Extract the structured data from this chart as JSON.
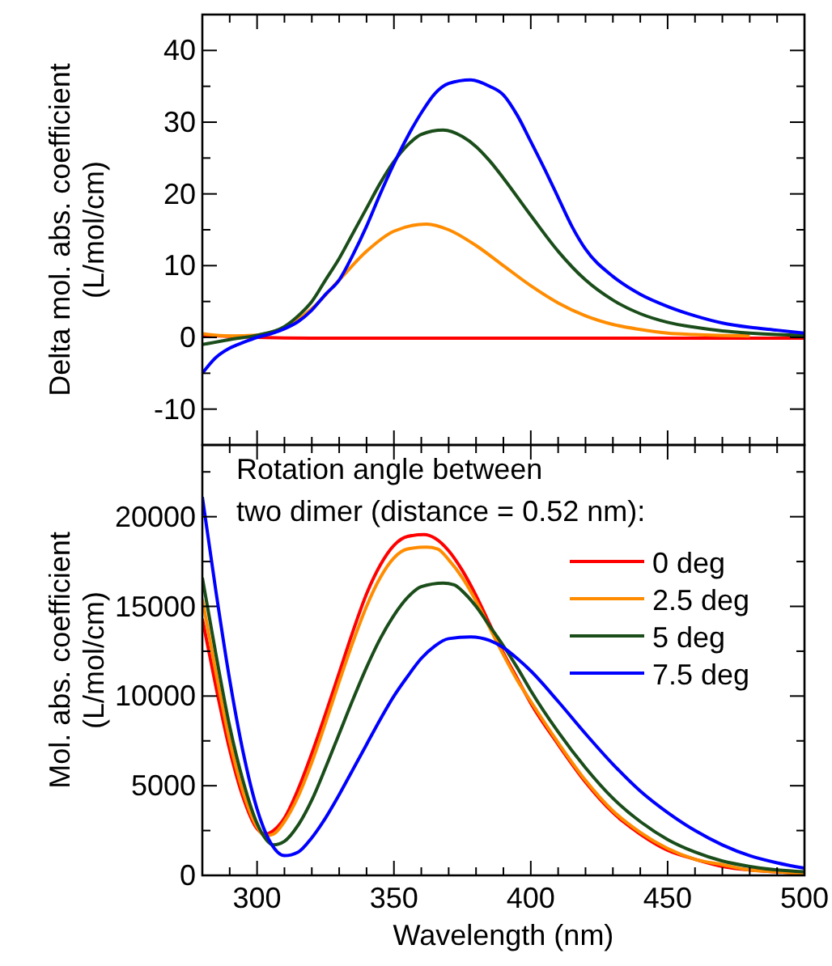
{
  "chart_data": [
    {
      "type": "line",
      "ylabel": "Delta mol. abs. coefficient\n(L/mol/cm)",
      "xlim": [
        280,
        500
      ],
      "ylim": [
        -15,
        45
      ],
      "tick_labels": "y",
      "xticks": [
        {
          "value": 290,
          "label": null
        },
        300,
        {
          "value": 310,
          "label": null
        },
        {
          "value": 320,
          "label": null
        },
        {
          "value": 330,
          "label": null
        },
        {
          "value": 340,
          "label": null
        },
        350,
        {
          "value": 360,
          "label": null
        },
        {
          "value": 370,
          "label": null
        },
        {
          "value": 380,
          "label": null
        },
        {
          "value": 390,
          "label": null
        },
        400,
        {
          "value": 410,
          "label": null
        },
        {
          "value": 420,
          "label": null
        },
        {
          "value": 430,
          "label": null
        },
        {
          "value": 440,
          "label": null
        },
        450,
        {
          "value": 460,
          "label": null
        },
        {
          "value": 470,
          "label": null
        },
        {
          "value": 480,
          "label": null
        },
        {
          "value": 490,
          "label": null
        },
        500
      ],
      "yticks": [
        -10,
        {
          "value": -5,
          "label": null
        },
        0,
        {
          "value": 5,
          "label": null
        },
        10,
        {
          "value": 15,
          "label": null
        },
        20,
        {
          "value": 25,
          "label": null
        },
        30,
        {
          "value": 35,
          "label": null
        },
        40
      ],
      "grid": false,
      "legend": false,
      "line_style": "solid",
      "marker": "none",
      "series": [
        {
          "color": "#ff0000",
          "x": [
            280,
            300,
            320,
            400,
            500
          ],
          "values": [
            0.3,
            0,
            -0.1,
            -0.1,
            -0.1
          ]
        },
        {
          "color": "#ff8c00",
          "x": [
            280,
            290,
            300,
            310,
            320,
            330,
            340,
            350,
            362,
            370,
            380,
            390,
            400,
            410,
            420,
            430,
            440,
            450,
            460,
            480
          ],
          "values": [
            0.5,
            0.2,
            0.3,
            1.4,
            4,
            8,
            12,
            14.8,
            15.8,
            15,
            12.8,
            10,
            7.2,
            4.8,
            3,
            1.8,
            1.1,
            0.6,
            0.4,
            0.2
          ]
        },
        {
          "color": "#1a4d1a",
          "x": [
            280,
            290,
            300,
            310,
            315,
            320,
            325,
            330,
            335,
            340,
            345,
            350,
            355,
            360,
            368,
            375,
            380,
            385,
            390,
            400,
            410,
            420,
            430,
            440,
            450,
            460,
            470,
            480,
            490,
            500
          ],
          "values": [
            -1,
            -0.3,
            0.3,
            1.5,
            3,
            5,
            8,
            11,
            14.5,
            18,
            21.5,
            24.5,
            26.8,
            28.3,
            28.9,
            28,
            26.6,
            24.6,
            22.2,
            17,
            12,
            8,
            5.2,
            3.3,
            2.1,
            1.4,
            0.9,
            0.6,
            0.4,
            0.3
          ]
        },
        {
          "color": "#0000ff",
          "x": [
            280,
            285,
            290,
            295,
            300,
            305,
            310,
            315,
            320,
            325,
            330,
            335,
            340,
            345,
            350,
            355,
            360,
            365,
            370,
            378,
            385,
            390,
            395,
            400,
            405,
            410,
            415,
            420,
            430,
            440,
            450,
            460,
            470,
            480,
            490,
            500
          ],
          "values": [
            -5,
            -2.8,
            -1.5,
            -0.7,
            0,
            0.5,
            1.2,
            2.2,
            3.8,
            6,
            8,
            11.5,
            15.5,
            20,
            24.2,
            28,
            31.3,
            34,
            35.4,
            35.9,
            35,
            33.8,
            31,
            27.3,
            23.5,
            19.5,
            15.5,
            12.3,
            8.5,
            6,
            4.3,
            3,
            2,
            1.4,
            1,
            0.6
          ]
        }
      ]
    },
    {
      "type": "line",
      "xlabel": "Wavelength (nm)",
      "ylabel": "Mol. abs. coefficient\n(L/mol/cm)",
      "legend_title": "Rotation angle between\ntwo dimer (distance = 0.52 nm):",
      "xlim": [
        280,
        500
      ],
      "ylim": [
        0,
        24000
      ],
      "xticks": [
        {
          "value": 290,
          "label": null
        },
        300,
        {
          "value": 310,
          "label": null
        },
        {
          "value": 320,
          "label": null
        },
        {
          "value": 330,
          "label": null
        },
        {
          "value": 340,
          "label": null
        },
        350,
        {
          "value": 360,
          "label": null
        },
        {
          "value": 370,
          "label": null
        },
        {
          "value": 380,
          "label": null
        },
        {
          "value": 390,
          "label": null
        },
        400,
        {
          "value": 410,
          "label": null
        },
        {
          "value": 420,
          "label": null
        },
        {
          "value": 430,
          "label": null
        },
        {
          "value": 440,
          "label": null
        },
        450,
        {
          "value": 460,
          "label": null
        },
        {
          "value": 470,
          "label": null
        },
        {
          "value": 480,
          "label": null
        },
        {
          "value": 490,
          "label": null
        },
        500
      ],
      "yticks": [
        0,
        {
          "value": 2500,
          "label": null
        },
        5000,
        {
          "value": 7500,
          "label": null
        },
        10000,
        {
          "value": 12500,
          "label": null
        },
        15000,
        {
          "value": 17500,
          "label": null
        },
        20000,
        {
          "value": 22500,
          "label": null
        }
      ],
      "grid": false,
      "legend": "top right",
      "line_style": "solid",
      "marker": "none",
      "series": [
        {
          "name": "0 deg",
          "color": "#ff0000",
          "x": [
            280,
            285,
            290,
            295,
            300,
            303,
            306,
            310,
            315,
            320,
            325,
            330,
            335,
            340,
            345,
            350,
            355,
            361,
            365,
            370,
            375,
            380,
            385,
            390,
            395,
            400,
            410,
            420,
            430,
            440,
            450,
            460,
            470,
            480,
            490,
            500
          ],
          "values": [
            14300,
            10500,
            7000,
            4300,
            2600,
            2300,
            2500,
            3200,
            4800,
            6800,
            9000,
            11300,
            13600,
            15700,
            17300,
            18400,
            18900,
            19000,
            18800,
            18100,
            17000,
            15600,
            14000,
            12400,
            11000,
            9600,
            7300,
            5200,
            3500,
            2300,
            1400,
            900,
            500,
            300,
            200,
            100
          ]
        },
        {
          "name": "2.5 deg",
          "color": "#ff8c00",
          "x": [
            280,
            285,
            290,
            295,
            300,
            303,
            306,
            310,
            315,
            320,
            325,
            330,
            335,
            340,
            345,
            350,
            355,
            362,
            366,
            370,
            375,
            380,
            385,
            390,
            395,
            400,
            410,
            420,
            430,
            440,
            450,
            460,
            470,
            480,
            490,
            500
          ],
          "values": [
            15400,
            11300,
            7500,
            4600,
            2700,
            2200,
            2300,
            3000,
            4400,
            6300,
            8500,
            10800,
            13000,
            15000,
            16600,
            17700,
            18200,
            18300,
            18200,
            17600,
            16600,
            15300,
            13800,
            12300,
            10900,
            9700,
            7400,
            5300,
            3600,
            2400,
            1500,
            900,
            600,
            300,
            200,
            100
          ]
        },
        {
          "name": "5 deg",
          "color": "#1a4d1a",
          "x": [
            280,
            285,
            290,
            295,
            300,
            306,
            310,
            315,
            320,
            325,
            330,
            335,
            340,
            345,
            350,
            355,
            360,
            368,
            372,
            376,
            380,
            385,
            390,
            395,
            400,
            410,
            420,
            430,
            440,
            450,
            460,
            470,
            480,
            490,
            500
          ],
          "values": [
            16600,
            12300,
            8300,
            5200,
            2900,
            1700,
            1900,
            2800,
            4200,
            6000,
            7900,
            9800,
            11600,
            13200,
            14500,
            15500,
            16100,
            16300,
            16200,
            15700,
            15000,
            13900,
            12800,
            11600,
            10300,
            8000,
            6000,
            4300,
            3000,
            2000,
            1300,
            800,
            500,
            300,
            200
          ]
        },
        {
          "name": "7.5 deg",
          "color": "#0000ff",
          "x": [
            280,
            285,
            290,
            295,
            300,
            305,
            310,
            315,
            320,
            325,
            330,
            335,
            340,
            345,
            350,
            355,
            360,
            365,
            370,
            378,
            385,
            390,
            395,
            400,
            410,
            420,
            430,
            440,
            450,
            460,
            470,
            480,
            490,
            500
          ],
          "values": [
            21100,
            15800,
            10900,
            6800,
            3700,
            1800,
            1100,
            1300,
            2100,
            3200,
            4500,
            5900,
            7300,
            8700,
            10000,
            11100,
            12100,
            12800,
            13200,
            13300,
            13100,
            12700,
            12100,
            11400,
            9700,
            7900,
            6200,
            4700,
            3500,
            2500,
            1700,
            1100,
            700,
            400
          ]
        }
      ]
    }
  ]
}
